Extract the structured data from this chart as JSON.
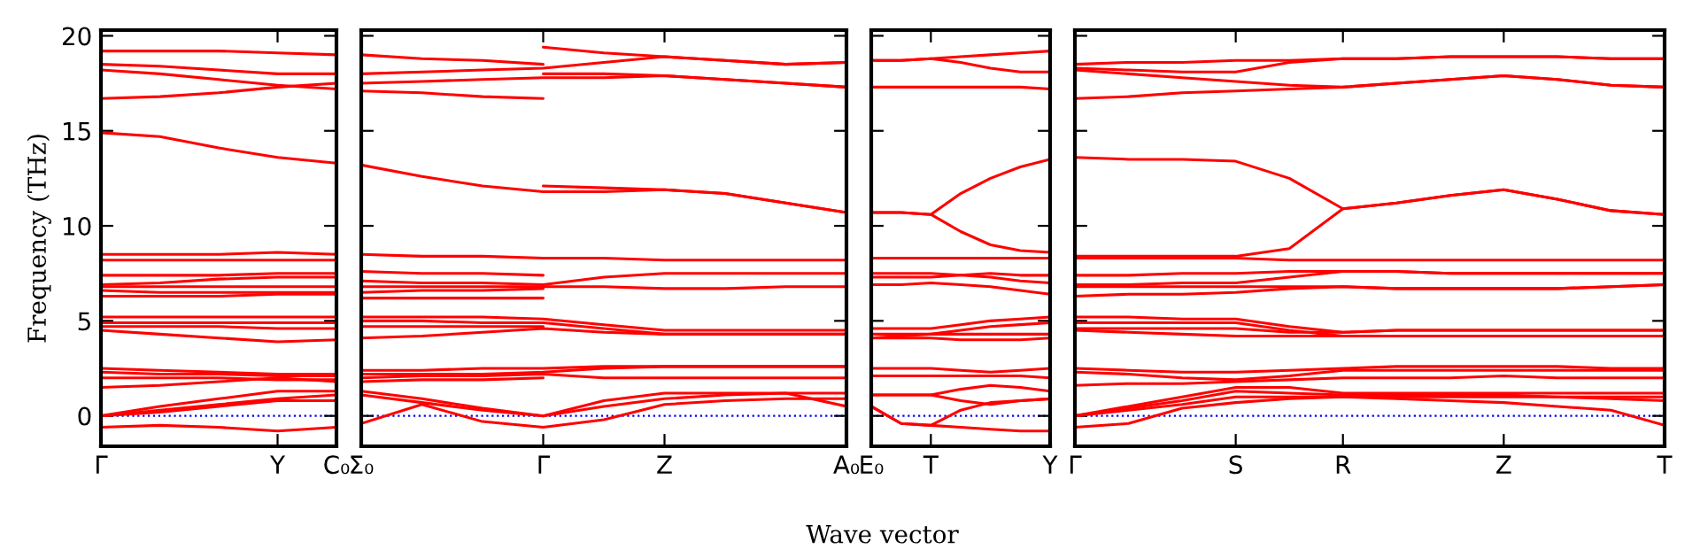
{
  "chart_data": [
    {
      "type": "line",
      "ylabel": "Frequency (THz)",
      "categories": [
        "Γ",
        null,
        null,
        "Y",
        "C₀"
      ],
      "ylim": [
        -1.6,
        20.3
      ],
      "yticks": [
        0,
        5,
        10,
        15,
        20
      ],
      "ref_lines": [
        {
          "axis": "y",
          "value": 0,
          "color": "#0000ff",
          "line_style": "dotted"
        }
      ],
      "series": [
        {
          "color": "#ff0000",
          "values": [
            19.2,
            19.2,
            19.2,
            19.1,
            19.0
          ]
        },
        {
          "color": "#ff0000",
          "values": [
            18.5,
            18.4,
            18.2,
            18.0,
            18.0
          ]
        },
        {
          "color": "#ff0000",
          "values": [
            18.2,
            18.0,
            17.7,
            17.4,
            17.2
          ]
        },
        {
          "color": "#ff0000",
          "values": [
            16.7,
            16.8,
            17.0,
            17.3,
            17.5
          ]
        },
        {
          "color": "#ff0000",
          "values": [
            14.9,
            14.7,
            14.1,
            13.6,
            13.3
          ]
        },
        {
          "color": "#ff0000",
          "values": [
            8.5,
            8.5,
            8.5,
            8.6,
            8.5
          ]
        },
        {
          "color": "#ff0000",
          "values": [
            8.2,
            8.2,
            8.2,
            8.2,
            8.2
          ]
        },
        {
          "color": "#ff0000",
          "values": [
            7.4,
            7.4,
            7.4,
            7.5,
            7.5
          ]
        },
        {
          "color": "#ff0000",
          "values": [
            6.9,
            7.0,
            7.2,
            7.3,
            7.3
          ]
        },
        {
          "color": "#ff0000",
          "values": [
            6.8,
            6.8,
            6.8,
            6.8,
            6.8
          ]
        },
        {
          "color": "#ff0000",
          "values": [
            6.6,
            6.5,
            6.5,
            6.5,
            6.5
          ]
        },
        {
          "color": "#ff0000",
          "values": [
            6.3,
            6.3,
            6.3,
            6.4,
            6.4
          ]
        },
        {
          "color": "#ff0000",
          "values": [
            5.2,
            5.2,
            5.2,
            5.2,
            5.2
          ]
        },
        {
          "color": "#ff0000",
          "values": [
            4.9,
            4.9,
            4.9,
            4.9,
            4.9
          ]
        },
        {
          "color": "#ff0000",
          "values": [
            4.7,
            4.7,
            4.7,
            4.6,
            4.6
          ]
        },
        {
          "color": "#ff0000",
          "values": [
            4.5,
            4.3,
            4.1,
            3.9,
            4.0
          ]
        },
        {
          "color": "#ff0000",
          "values": [
            2.5,
            2.4,
            2.3,
            2.2,
            2.2
          ]
        },
        {
          "color": "#ff0000",
          "values": [
            2.3,
            2.2,
            2.2,
            2.1,
            2.1
          ]
        },
        {
          "color": "#ff0000",
          "values": [
            2.0,
            2.0,
            2.0,
            1.9,
            1.9
          ]
        },
        {
          "color": "#ff0000",
          "values": [
            1.5,
            1.6,
            1.8,
            2.0,
            1.8
          ]
        },
        {
          "color": "#ff0000",
          "values": [
            0.0,
            0.5,
            0.9,
            1.3,
            1.3
          ]
        },
        {
          "color": "#ff0000",
          "values": [
            0.0,
            0.3,
            0.6,
            0.9,
            1.1
          ]
        },
        {
          "color": "#ff0000",
          "values": [
            0.0,
            0.2,
            0.5,
            0.8,
            0.8
          ]
        },
        {
          "color": "#ff0000",
          "values": [
            -0.6,
            -0.5,
            -0.6,
            -0.8,
            -0.6
          ]
        }
      ]
    },
    {
      "type": "line",
      "categories": [
        "Σ₀",
        null,
        null,
        "Γ",
        null,
        "Z",
        null,
        null,
        "A₀"
      ],
      "ylim": [
        -1.6,
        20.3
      ],
      "yticks": [
        {
          "value": 0,
          "label": null
        },
        {
          "value": 5,
          "label": null
        },
        {
          "value": 10,
          "label": null
        },
        {
          "value": 15,
          "label": null
        },
        {
          "value": 20,
          "label": null
        }
      ],
      "tick_labels": "x",
      "ref_lines": [
        {
          "axis": "y",
          "value": 0,
          "color": "#0000ff",
          "line_style": "dotted"
        }
      ],
      "series": [
        {
          "color": "#ff0000",
          "values": [
            19.0,
            18.8,
            18.7,
            18.5,
            null,
            null,
            null,
            null,
            null
          ]
        },
        {
          "color": "#ff0000",
          "values": [
            null,
            null,
            null,
            19.4,
            19.1,
            18.9,
            18.7,
            18.5,
            18.6
          ]
        },
        {
          "color": "#ff0000",
          "values": [
            18.0,
            18.1,
            18.2,
            18.3,
            18.6,
            18.9,
            18.7,
            18.5,
            18.6
          ]
        },
        {
          "color": "#ff0000",
          "values": [
            17.5,
            17.6,
            17.7,
            17.8,
            17.8,
            17.9,
            17.7,
            17.5,
            17.3
          ]
        },
        {
          "color": "#ff0000",
          "values": [
            null,
            null,
            null,
            18.0,
            18.0,
            17.9,
            17.7,
            17.5,
            17.3
          ]
        },
        {
          "color": "#ff0000",
          "values": [
            17.1,
            17.0,
            16.8,
            16.7,
            null,
            null,
            null,
            null,
            null
          ]
        },
        {
          "color": "#ff0000",
          "values": [
            13.2,
            12.6,
            12.1,
            11.8,
            11.8,
            11.9,
            11.7,
            11.2,
            10.7
          ]
        },
        {
          "color": "#ff0000",
          "values": [
            null,
            null,
            null,
            12.1,
            12.0,
            11.9,
            11.7,
            11.2,
            10.7
          ]
        },
        {
          "color": "#ff0000",
          "values": [
            8.5,
            8.4,
            8.4,
            8.3,
            8.3,
            8.2,
            8.2,
            8.2,
            8.2
          ]
        },
        {
          "color": "#ff0000",
          "values": [
            7.6,
            7.5,
            7.5,
            7.4,
            null,
            null,
            null,
            null,
            null
          ]
        },
        {
          "color": "#ff0000",
          "values": [
            7.1,
            7.0,
            7.0,
            6.9,
            7.3,
            7.5,
            7.5,
            7.5,
            7.5
          ]
        },
        {
          "color": "#ff0000",
          "values": [
            6.8,
            6.8,
            6.8,
            6.8,
            6.8,
            6.7,
            6.7,
            6.8,
            6.8
          ]
        },
        {
          "color": "#ff0000",
          "values": [
            6.5,
            6.6,
            6.6,
            6.7,
            null,
            null,
            null,
            null,
            null
          ]
        },
        {
          "color": "#ff0000",
          "values": [
            6.2,
            6.2,
            6.2,
            6.2,
            null,
            null,
            null,
            null,
            null
          ]
        },
        {
          "color": "#ff0000",
          "values": [
            5.2,
            5.2,
            5.2,
            5.1,
            4.8,
            4.5,
            4.5,
            4.5,
            4.5
          ]
        },
        {
          "color": "#ff0000",
          "values": [
            5.0,
            5.0,
            4.9,
            4.9,
            4.6,
            4.3,
            4.3,
            4.3,
            4.3
          ]
        },
        {
          "color": "#ff0000",
          "values": [
            4.7,
            4.7,
            4.7,
            4.7,
            null,
            null,
            null,
            null,
            null
          ]
        },
        {
          "color": "#ff0000",
          "values": [
            4.1,
            4.2,
            4.4,
            4.6,
            4.4,
            4.3,
            4.3,
            4.3,
            4.3
          ]
        },
        {
          "color": "#ff0000",
          "values": [
            2.4,
            2.4,
            2.5,
            2.5,
            2.6,
            2.6,
            2.6,
            2.6,
            2.6
          ]
        },
        {
          "color": "#ff0000",
          "values": [
            2.2,
            2.2,
            2.2,
            2.3,
            2.5,
            2.6,
            2.6,
            2.6,
            2.6
          ]
        },
        {
          "color": "#ff0000",
          "values": [
            2.0,
            2.1,
            2.1,
            2.2,
            2.0,
            2.0,
            2.0,
            2.0,
            2.0
          ]
        },
        {
          "color": "#ff0000",
          "values": [
            1.8,
            1.9,
            1.9,
            2.0,
            null,
            null,
            null,
            null,
            null
          ]
        },
        {
          "color": "#ff0000",
          "values": [
            1.3,
            0.9,
            0.4,
            0.0,
            0.8,
            1.2,
            1.2,
            1.2,
            1.2
          ]
        },
        {
          "color": "#ff0000",
          "values": [
            1.1,
            0.7,
            0.3,
            0.0,
            0.5,
            0.9,
            1.1,
            1.2,
            0.5
          ]
        },
        {
          "color": "#ff0000",
          "values": [
            -0.4,
            0.6,
            -0.3,
            -0.6,
            -0.2,
            0.6,
            0.8,
            0.9,
            0.9
          ]
        }
      ]
    },
    {
      "type": "line",
      "xlabel": "Wave vector",
      "categories": [
        "E₀",
        null,
        "T",
        null,
        null,
        null,
        "Y"
      ],
      "ylim": [
        -1.6,
        20.3
      ],
      "yticks": [
        {
          "value": 0,
          "label": null
        },
        {
          "value": 5,
          "label": null
        },
        {
          "value": 10,
          "label": null
        },
        {
          "value": 15,
          "label": null
        },
        {
          "value": 20,
          "label": null
        }
      ],
      "tick_labels": "x",
      "ref_lines": [
        {
          "axis": "y",
          "value": 0,
          "color": "#0000ff",
          "line_style": "dotted"
        }
      ],
      "series": [
        {
          "color": "#ff0000",
          "values": [
            18.7,
            18.7,
            18.8,
            18.9,
            19.0,
            19.1,
            19.2
          ]
        },
        {
          "color": "#ff0000",
          "values": [
            18.7,
            18.7,
            18.8,
            18.6,
            18.3,
            18.1,
            18.1
          ]
        },
        {
          "color": "#ff0000",
          "values": [
            17.3,
            17.3,
            17.3,
            17.3,
            17.3,
            17.3,
            17.2
          ]
        },
        {
          "color": "#ff0000",
          "values": [
            10.7,
            10.7,
            10.6,
            11.7,
            12.5,
            13.1,
            13.5
          ]
        },
        {
          "color": "#ff0000",
          "values": [
            10.7,
            10.7,
            10.6,
            9.7,
            9.0,
            8.7,
            8.6
          ]
        },
        {
          "color": "#ff0000",
          "values": [
            8.3,
            8.3,
            8.3,
            8.3,
            8.3,
            8.3,
            8.3
          ]
        },
        {
          "color": "#ff0000",
          "values": [
            7.5,
            7.5,
            7.5,
            7.4,
            7.3,
            7.1,
            7.0
          ]
        },
        {
          "color": "#ff0000",
          "values": [
            7.3,
            7.3,
            7.3,
            7.4,
            7.5,
            7.4,
            7.4
          ]
        },
        {
          "color": "#ff0000",
          "values": [
            6.9,
            6.9,
            7.0,
            6.9,
            6.8,
            6.6,
            6.4
          ]
        },
        {
          "color": "#ff0000",
          "values": [
            4.6,
            4.6,
            4.6,
            4.8,
            5.0,
            5.1,
            5.2
          ]
        },
        {
          "color": "#ff0000",
          "values": [
            4.3,
            4.3,
            4.3,
            4.5,
            4.7,
            4.8,
            4.9
          ]
        },
        {
          "color": "#ff0000",
          "values": [
            4.1,
            4.2,
            4.3,
            4.3,
            4.3,
            4.3,
            4.3
          ]
        },
        {
          "color": "#ff0000",
          "values": [
            4.1,
            4.1,
            4.1,
            4.0,
            4.0,
            4.0,
            4.1
          ]
        },
        {
          "color": "#ff0000",
          "values": [
            2.5,
            2.5,
            2.5,
            2.4,
            2.3,
            2.4,
            2.5
          ]
        },
        {
          "color": "#ff0000",
          "values": [
            2.1,
            2.1,
            2.1,
            2.1,
            2.1,
            2.1,
            2.0
          ]
        },
        {
          "color": "#ff0000",
          "values": [
            1.1,
            1.1,
            1.1,
            1.4,
            1.6,
            1.5,
            1.3
          ]
        },
        {
          "color": "#ff0000",
          "values": [
            1.1,
            1.1,
            1.1,
            0.8,
            0.6,
            0.8,
            0.9
          ]
        },
        {
          "color": "#ff0000",
          "values": [
            0.5,
            -0.4,
            -0.5,
            -0.6,
            -0.7,
            -0.8,
            -0.8
          ]
        },
        {
          "color": "#ff0000",
          "values": [
            0.5,
            -0.4,
            -0.5,
            0.3,
            0.7,
            0.8,
            0.9
          ]
        }
      ]
    },
    {
      "type": "line",
      "categories": [
        "Γ",
        null,
        null,
        "S",
        null,
        "R",
        null,
        null,
        "Z",
        null,
        null,
        "T"
      ],
      "ylim": [
        -1.6,
        20.3
      ],
      "yticks": [
        {
          "value": 0,
          "label": null
        },
        {
          "value": 5,
          "label": null
        },
        {
          "value": 10,
          "label": null
        },
        {
          "value": 15,
          "label": null
        },
        {
          "value": 20,
          "label": null
        }
      ],
      "tick_labels": "x",
      "ref_lines": [
        {
          "axis": "y",
          "value": 0,
          "color": "#0000ff",
          "line_style": "dotted"
        }
      ],
      "series": [
        {
          "color": "#ff0000",
          "values": [
            18.5,
            18.6,
            18.6,
            18.7,
            18.7,
            18.8,
            18.8,
            18.9,
            18.9,
            18.9,
            18.8,
            18.8
          ]
        },
        {
          "color": "#ff0000",
          "values": [
            18.3,
            18.2,
            18.1,
            18.1,
            18.6,
            18.8,
            18.8,
            18.9,
            18.9,
            18.9,
            18.8,
            18.8
          ]
        },
        {
          "color": "#ff0000",
          "values": [
            18.2,
            18.0,
            17.8,
            17.6,
            17.4,
            17.3,
            17.5,
            17.7,
            17.9,
            17.7,
            17.4,
            17.3
          ]
        },
        {
          "color": "#ff0000",
          "values": [
            16.7,
            16.8,
            17.0,
            17.1,
            17.2,
            17.3,
            17.5,
            17.7,
            17.9,
            17.7,
            17.4,
            17.3
          ]
        },
        {
          "color": "#ff0000",
          "values": [
            13.6,
            13.5,
            13.5,
            13.4,
            12.5,
            10.9,
            11.2,
            11.6,
            11.9,
            11.4,
            10.8,
            10.6
          ]
        },
        {
          "color": "#ff0000",
          "values": [
            8.4,
            8.4,
            8.4,
            8.4,
            8.8,
            10.9,
            11.2,
            11.6,
            11.9,
            11.4,
            10.8,
            10.6
          ]
        },
        {
          "color": "#ff0000",
          "values": [
            8.3,
            8.3,
            8.3,
            8.3,
            8.2,
            8.2,
            8.2,
            8.2,
            8.2,
            8.2,
            8.2,
            8.2
          ]
        },
        {
          "color": "#ff0000",
          "values": [
            7.4,
            7.4,
            7.5,
            7.5,
            7.6,
            7.6,
            7.6,
            7.5,
            7.5,
            7.5,
            7.5,
            7.5
          ]
        },
        {
          "color": "#ff0000",
          "values": [
            6.9,
            6.9,
            7.0,
            7.0,
            7.3,
            7.6,
            7.6,
            7.5,
            7.5,
            7.5,
            7.5,
            7.5
          ]
        },
        {
          "color": "#ff0000",
          "values": [
            6.8,
            6.8,
            6.8,
            6.8,
            6.8,
            6.8,
            6.7,
            6.7,
            6.7,
            6.7,
            6.8,
            6.9
          ]
        },
        {
          "color": "#ff0000",
          "values": [
            6.3,
            6.4,
            6.4,
            6.5,
            6.7,
            6.8,
            6.7,
            6.7,
            6.7,
            6.7,
            6.8,
            6.9
          ]
        },
        {
          "color": "#ff0000",
          "values": [
            5.2,
            5.2,
            5.1,
            5.1,
            4.7,
            4.4,
            4.5,
            4.5,
            4.5,
            4.5,
            4.5,
            4.5
          ]
        },
        {
          "color": "#ff0000",
          "values": [
            4.9,
            4.9,
            4.9,
            4.9,
            4.5,
            4.2,
            4.2,
            4.2,
            4.2,
            4.2,
            4.2,
            4.2
          ]
        },
        {
          "color": "#ff0000",
          "values": [
            4.6,
            4.6,
            4.6,
            4.6,
            4.4,
            4.4,
            4.5,
            4.5,
            4.5,
            4.5,
            4.5,
            4.5
          ]
        },
        {
          "color": "#ff0000",
          "values": [
            4.5,
            4.4,
            4.3,
            4.2,
            4.2,
            4.2,
            4.2,
            4.2,
            4.2,
            4.2,
            4.2,
            4.2
          ]
        },
        {
          "color": "#ff0000",
          "values": [
            2.5,
            2.4,
            2.3,
            2.3,
            2.4,
            2.5,
            2.6,
            2.6,
            2.6,
            2.6,
            2.5,
            2.5
          ]
        },
        {
          "color": "#ff0000",
          "values": [
            2.3,
            2.2,
            2.0,
            1.9,
            2.1,
            2.4,
            2.4,
            2.4,
            2.4,
            2.4,
            2.4,
            2.4
          ]
        },
        {
          "color": "#ff0000",
          "values": [
            1.6,
            1.7,
            1.7,
            1.8,
            1.9,
            2.0,
            2.0,
            2.0,
            2.1,
            2.0,
            2.0,
            2.0
          ]
        },
        {
          "color": "#ff0000",
          "values": [
            0.0,
            0.5,
            1.0,
            1.5,
            1.5,
            1.2,
            1.2,
            1.2,
            1.2,
            1.2,
            1.2,
            1.2
          ]
        },
        {
          "color": "#ff0000",
          "values": [
            0.0,
            0.4,
            0.8,
            1.3,
            1.2,
            1.1,
            1.1,
            1.1,
            1.1,
            1.0,
            0.9,
            0.8
          ]
        },
        {
          "color": "#ff0000",
          "values": [
            0.0,
            0.3,
            0.6,
            1.0,
            1.0,
            1.0,
            0.9,
            0.8,
            0.7,
            0.5,
            0.3,
            -0.5
          ]
        },
        {
          "color": "#ff0000",
          "values": [
            -0.6,
            -0.4,
            0.4,
            0.7,
            0.9,
            1.0,
            1.0,
            1.0,
            1.0,
            1.0,
            1.0,
            1.0
          ]
        }
      ]
    }
  ]
}
